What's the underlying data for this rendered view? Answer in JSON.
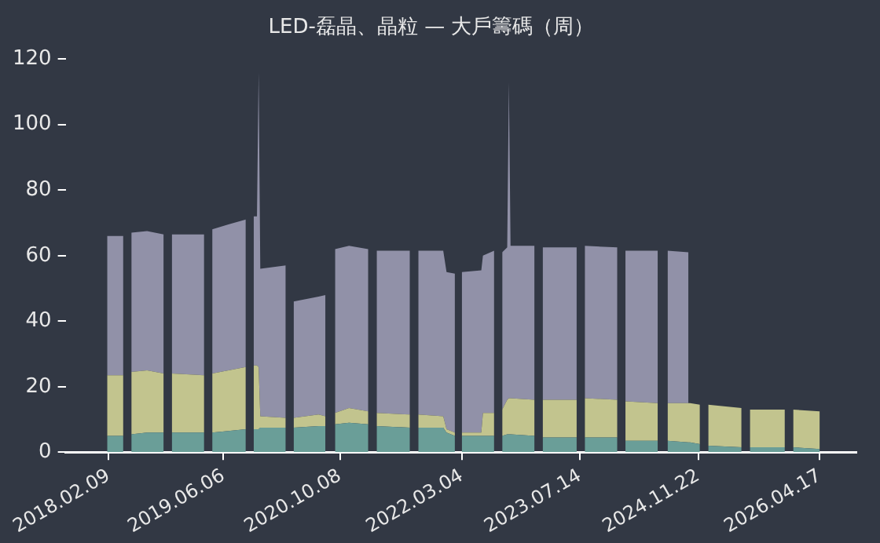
{
  "chart_data": {
    "type": "area",
    "title": "LED-磊晶、晶粒 — 大戶籌碼（周）",
    "stacked": true,
    "grid": false,
    "legend": false,
    "x": [
      "2018-02-02",
      "2018-04-11",
      "2018-04-28",
      "2018-05-15",
      "2018-07-20",
      "2018-09-28",
      "2018-10-15",
      "2018-11-01",
      "2019-03-17",
      "2019-04-03",
      "2019-04-20",
      "2019-06-27",
      "2019-09-08",
      "2019-09-25",
      "2019-10-11",
      "2019-10-25",
      "2019-11-01",
      "2019-11-08",
      "2020-02-23",
      "2020-03-10",
      "2020-03-27",
      "2020-07-10",
      "2020-08-08",
      "2020-08-28",
      "2020-09-17",
      "2020-11-15",
      "2021-02-04",
      "2021-02-21",
      "2021-03-11",
      "2021-07-29",
      "2021-08-15",
      "2021-09-02",
      "2021-12-16",
      "2021-12-30",
      "2022-02-03",
      "2022-02-17",
      "2022-03-04",
      "2022-05-25",
      "2022-06-01",
      "2022-07-18",
      "2022-08-04",
      "2022-08-21",
      "2022-09-11",
      "2022-09-18",
      "2022-09-25",
      "2023-01-04",
      "2023-01-21",
      "2023-02-07",
      "2023-06-30",
      "2023-07-17",
      "2023-08-03",
      "2023-12-18",
      "2024-01-04",
      "2024-01-21",
      "2024-06-05",
      "2024-06-26",
      "2024-07-16",
      "2024-10-12",
      "2024-10-19",
      "2024-11-29",
      "2024-12-16",
      "2025-01-03",
      "2025-05-23",
      "2025-06-09",
      "2025-06-27",
      "2025-11-21",
      "2025-12-08",
      "2025-12-26",
      "2026-04-17"
    ],
    "series": [
      {
        "color": "#6a9e98",
        "values": [
          5,
          5,
          null,
          5.5,
          6,
          6,
          null,
          6,
          6,
          null,
          6,
          6.5,
          7,
          null,
          7,
          7,
          7,
          7.5,
          7.5,
          null,
          7.5,
          8,
          8,
          null,
          8.5,
          9,
          8.5,
          null,
          8,
          7.5,
          null,
          7.5,
          7.5,
          6,
          5,
          null,
          5,
          5,
          5,
          5,
          null,
          5,
          5.5,
          5.5,
          5.5,
          5,
          null,
          4.5,
          4.5,
          null,
          4.5,
          4.5,
          null,
          3.5,
          3.5,
          null,
          3.5,
          3,
          3,
          2.5,
          null,
          2,
          1.5,
          null,
          1.5,
          1.5,
          null,
          1.5,
          1
        ]
      },
      {
        "color": "#c2c48e",
        "values": [
          18.5,
          18.5,
          null,
          19,
          19,
          18,
          null,
          18,
          17.5,
          null,
          18,
          18.5,
          19,
          null,
          19.5,
          19.5,
          19,
          3.5,
          3,
          null,
          3,
          3.5,
          3,
          null,
          3.5,
          4.5,
          4,
          null,
          4,
          4,
          null,
          4,
          3.5,
          1,
          1,
          null,
          1,
          1,
          7,
          7,
          null,
          8,
          10.5,
          11,
          11,
          11,
          null,
          11.5,
          11.5,
          null,
          12,
          11.5,
          null,
          12,
          11.5,
          null,
          11.5,
          12,
          12,
          12,
          null,
          12.5,
          12,
          null,
          11.5,
          11.5,
          null,
          11.5,
          11.5
        ]
      },
      {
        "color": "#9191a8",
        "values": [
          42.5,
          42.5,
          null,
          42.5,
          42.5,
          42.5,
          null,
          42.5,
          43,
          null,
          44,
          44.5,
          45,
          null,
          45.5,
          45.5,
          90,
          45,
          46.5,
          null,
          35.5,
          36,
          37,
          null,
          50,
          49.5,
          49.5,
          null,
          49.5,
          50,
          null,
          50,
          50.5,
          48,
          48.5,
          null,
          49,
          49.5,
          48,
          49.5,
          null,
          48,
          46.5,
          96.5,
          46.5,
          47,
          null,
          46.5,
          46.5,
          null,
          46.5,
          46.5,
          null,
          46,
          46.5,
          null,
          46.5,
          46,
          null,
          null,
          null,
          null,
          null,
          null,
          null,
          null,
          null,
          null,
          null
        ]
      }
    ],
    "xlim": [
      "2017-08-12",
      "2026-09-18"
    ],
    "xticks": [
      {
        "value": "2018-02-09",
        "label": "2018.02.09"
      },
      {
        "value": "2019-06-06",
        "label": "2019.06.06"
      },
      {
        "value": "2020-10-08",
        "label": "2020.10.08"
      },
      {
        "value": "2022-03-04",
        "label": "2022.03.04"
      },
      {
        "value": "2023-07-14",
        "label": "2023.07.14"
      },
      {
        "value": "2024-11-22",
        "label": "2024.11.22"
      },
      {
        "value": "2026-04-17",
        "label": "2026.04.17"
      }
    ],
    "ylim": [
      0,
      120
    ],
    "yticks": [
      0,
      20,
      40,
      60,
      80,
      100,
      120
    ]
  }
}
